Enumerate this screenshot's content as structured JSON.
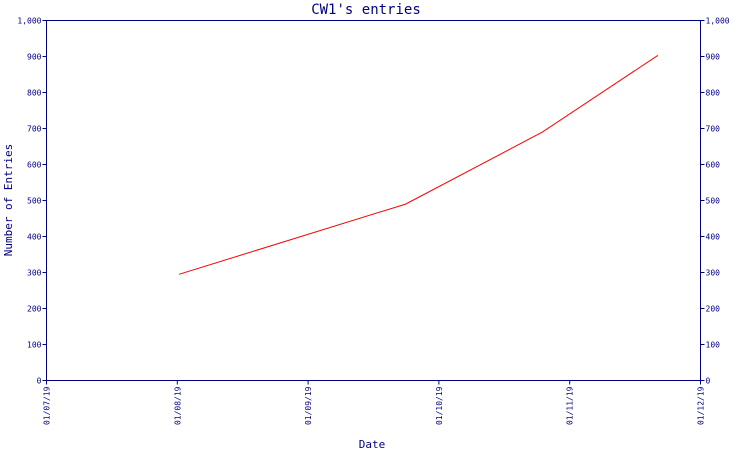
{
  "chart_data": {
    "type": "line",
    "title": "CW1's entries",
    "xlabel": "Date",
    "ylabel": "Number of Entries",
    "ylim": [
      0,
      1000
    ],
    "y_ticks": [
      0,
      100,
      200,
      300,
      400,
      500,
      600,
      700,
      800,
      900,
      1000
    ],
    "y_tick_labels": [
      "0",
      "100",
      "200",
      "300",
      "400",
      "500",
      "600",
      "700",
      "800",
      "900",
      "1,000"
    ],
    "x_tick_labels": [
      "01/07/19",
      "01/08/19",
      "01/09/19",
      "01/10/19",
      "01/11/19",
      "01/12/19"
    ],
    "xlim": [
      "2019-07-01",
      "2019-12-01"
    ],
    "grid": false,
    "right_axis_mirrors_left": true,
    "series": [
      {
        "color": "#ff0000",
        "points": [
          {
            "x": "2019-08-01",
            "y": 295
          },
          {
            "x": "2019-09-23",
            "y": 490
          },
          {
            "x": "2019-10-25",
            "y": 690
          },
          {
            "x": "2019-11-21",
            "y": 903
          }
        ]
      }
    ]
  }
}
